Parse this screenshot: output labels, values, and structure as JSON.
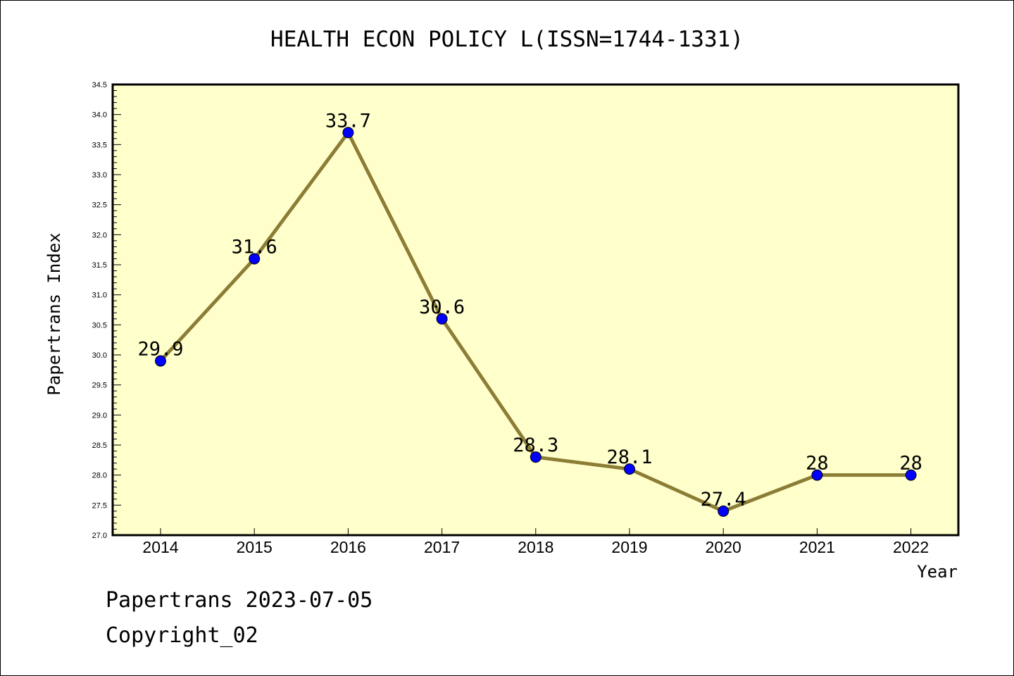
{
  "chart_data": {
    "type": "line",
    "title": "HEALTH ECON POLICY L(ISSN=1744-1331)",
    "xlabel": "Year",
    "ylabel": "Papertrans Index",
    "categories": [
      "2014",
      "2015",
      "2016",
      "2017",
      "2018",
      "2019",
      "2020",
      "2021",
      "2022"
    ],
    "values": [
      29.9,
      31.6,
      33.7,
      30.6,
      28.3,
      28.1,
      27.4,
      28.0,
      28.0
    ],
    "data_labels": [
      "29.9",
      "31.6",
      "33.7",
      "30.6",
      "28.3",
      "28.1",
      "27.4",
      "28",
      "28"
    ],
    "ylim": [
      27.0,
      34.5
    ],
    "yticks": [
      "27.0",
      "27.5",
      "28.0",
      "28.5",
      "29.0",
      "29.5",
      "30.0",
      "30.5",
      "31.0",
      "31.5",
      "32.0",
      "32.5",
      "33.0",
      "33.5",
      "34.0",
      "34.5"
    ],
    "grid": false,
    "legend": "none",
    "colors": {
      "plot_background": "#ffffcc",
      "line": "#8b7d35",
      "marker": "#0000ff"
    }
  },
  "footer": {
    "line1": "Papertrans 2023-07-05",
    "line2": "Copyright_02"
  }
}
